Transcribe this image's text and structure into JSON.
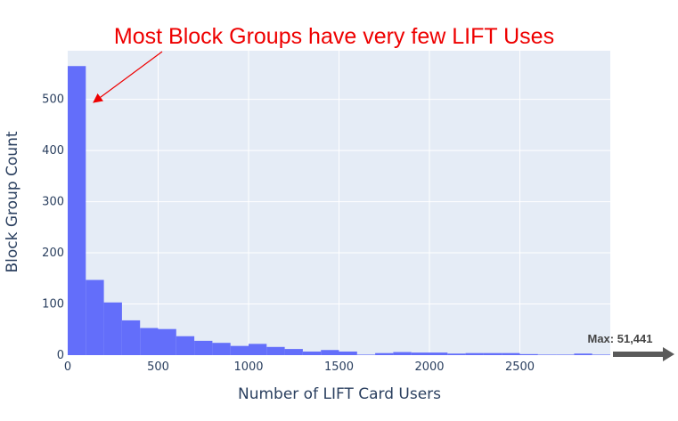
{
  "chart_data": {
    "type": "bar",
    "title": "",
    "xlabel": "Number of LIFT Card Users",
    "ylabel": "Block Group Count",
    "bin_width": 100,
    "bin_starts": [
      0,
      100,
      200,
      300,
      400,
      500,
      600,
      700,
      800,
      900,
      1000,
      1100,
      1200,
      1300,
      1400,
      1500,
      1600,
      1700,
      1800,
      1900,
      2000,
      2100,
      2200,
      2300,
      2400,
      2500,
      2600,
      2700,
      2800,
      2900
    ],
    "values": [
      565,
      147,
      103,
      68,
      53,
      51,
      37,
      28,
      24,
      18,
      22,
      16,
      12,
      7,
      10,
      7,
      1,
      4,
      6,
      5,
      5,
      3,
      4,
      4,
      4,
      2,
      1,
      1,
      3,
      1
    ],
    "xlim": [
      0,
      3000
    ],
    "ylim": [
      0,
      595
    ],
    "x_ticks": [
      0,
      500,
      1000,
      1500,
      2000,
      2500
    ],
    "x_tick_labels": [
      "0",
      "500",
      "1000",
      "1500",
      "2000",
      "2500"
    ],
    "y_ticks": [
      0,
      100,
      200,
      300,
      400,
      500
    ],
    "y_tick_labels": [
      "0",
      "100",
      "200",
      "300",
      "400",
      "500"
    ],
    "bar_color": "#636efa",
    "plot_bg": "#e5ecf6",
    "grid": true,
    "annotations": {
      "headline": "Most Block Groups have very few LIFT Uses",
      "headline_color": "#ee0000",
      "max_label": "Max: 51,441",
      "max_arrow_color": "#5a5a5a"
    }
  }
}
